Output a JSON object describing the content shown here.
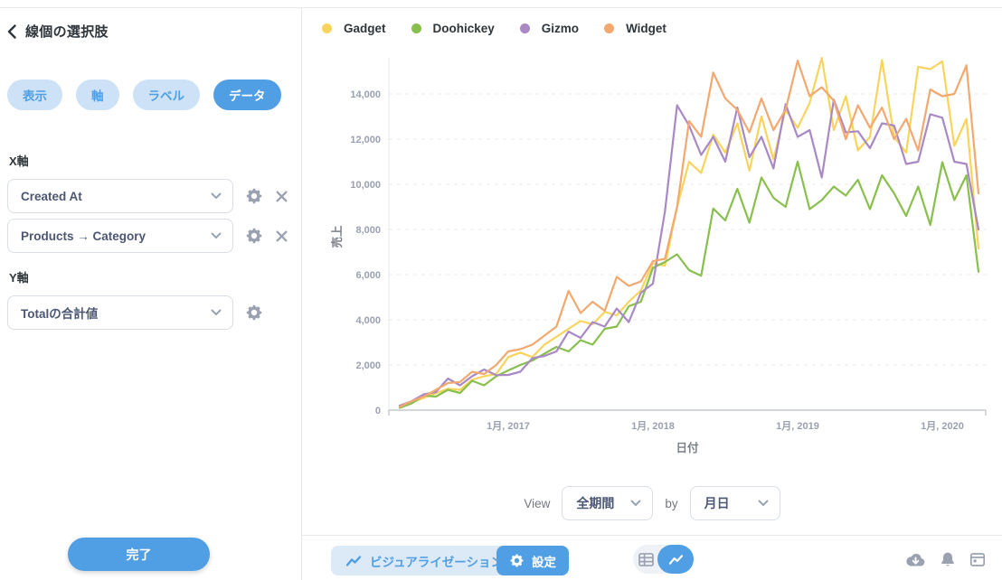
{
  "sidebar": {
    "title": "線個の選択肢",
    "tabs": [
      {
        "label": "表示",
        "active": false
      },
      {
        "label": "軸",
        "active": false
      },
      {
        "label": "ラベル",
        "active": false
      },
      {
        "label": "データ",
        "active": true
      }
    ],
    "x_axis_section": "X軸",
    "y_axis_section": "Y軸",
    "x_fields": [
      "Created At",
      "Products → Category"
    ],
    "y_fields": [
      "Totalの合計値"
    ],
    "done_label": "完了"
  },
  "legend": [
    {
      "label": "Gadget",
      "color": "#F9D45C"
    },
    {
      "label": "Doohickey",
      "color": "#88BF4D"
    },
    {
      "label": "Gizmo",
      "color": "#A989C5"
    },
    {
      "label": "Widget",
      "color": "#F2A86F"
    }
  ],
  "chart_data": {
    "type": "line",
    "title": "",
    "xlabel": "日付",
    "ylabel": "売上",
    "ylim": [
      0,
      15700
    ],
    "grid": "dashed-horizontal",
    "legend_position": "top",
    "y_ticks": [
      0,
      2000,
      4000,
      6000,
      8000,
      10000,
      12000,
      14000
    ],
    "x_ticks": [
      {
        "index": 9,
        "label": "1月, 2017"
      },
      {
        "index": 21,
        "label": "1月, 2018"
      },
      {
        "index": 33,
        "label": "1月, 2019"
      },
      {
        "index": 45,
        "label": "1月, 2020"
      }
    ],
    "x": [
      "2016-04",
      "2016-05",
      "2016-06",
      "2016-07",
      "2016-08",
      "2016-09",
      "2016-10",
      "2016-11",
      "2016-12",
      "2017-01",
      "2017-02",
      "2017-03",
      "2017-04",
      "2017-05",
      "2017-06",
      "2017-07",
      "2017-08",
      "2017-09",
      "2017-10",
      "2017-11",
      "2017-12",
      "2018-01",
      "2018-02",
      "2018-03",
      "2018-04",
      "2018-05",
      "2018-06",
      "2018-07",
      "2018-08",
      "2018-09",
      "2018-10",
      "2018-11",
      "2018-12",
      "2019-01",
      "2019-02",
      "2019-03",
      "2019-04",
      "2019-05",
      "2019-06",
      "2019-07",
      "2019-08",
      "2019-09",
      "2019-10",
      "2019-11",
      "2019-12",
      "2020-01",
      "2020-02",
      "2020-03",
      "2020-04"
    ],
    "series": [
      {
        "name": "Gadget",
        "color": "#F9D45C",
        "values": [
          150,
          350,
          550,
          750,
          950,
          900,
          1350,
          1500,
          1600,
          2350,
          2550,
          2350,
          2900,
          3250,
          3600,
          3950,
          3800,
          4350,
          4200,
          4800,
          5300,
          6500,
          6400,
          9000,
          11000,
          10500,
          12200,
          11400,
          12700,
          10600,
          13000,
          11100,
          13300,
          12500,
          13600,
          15600,
          12400,
          13900,
          11500,
          12100,
          15500,
          12100,
          11400,
          15200,
          15100,
          15450,
          11700,
          12900,
          7150
        ]
      },
      {
        "name": "Doohickey",
        "color": "#88BF4D",
        "values": [
          100,
          300,
          650,
          600,
          900,
          760,
          1300,
          1100,
          1500,
          1760,
          2000,
          2200,
          2500,
          2800,
          2600,
          3100,
          2900,
          3600,
          3700,
          4600,
          4800,
          6300,
          6560,
          6900,
          6200,
          5950,
          8930,
          8400,
          9800,
          8300,
          10300,
          9400,
          9000,
          11000,
          8900,
          9300,
          9900,
          9500,
          10200,
          8900,
          10400,
          9600,
          8600,
          9900,
          8200,
          10980,
          9300,
          10400,
          6130
        ]
      },
      {
        "name": "Gizmo",
        "color": "#A989C5",
        "values": [
          200,
          400,
          700,
          800,
          1400,
          1100,
          1500,
          1800,
          1550,
          1560,
          1700,
          2300,
          2400,
          2600,
          3480,
          3200,
          3900,
          3700,
          4500,
          3900,
          5200,
          5600,
          8800,
          13500,
          12600,
          11300,
          12100,
          11000,
          13400,
          11200,
          12100,
          10700,
          13550,
          12100,
          12400,
          10300,
          13750,
          12300,
          12350,
          11600,
          12700,
          12600,
          10900,
          11000,
          13100,
          12950,
          11000,
          10900,
          8000
        ]
      },
      {
        "name": "Widget",
        "color": "#F2A86F",
        "values": [
          150,
          400,
          600,
          900,
          1200,
          1250,
          1700,
          1600,
          2000,
          2600,
          2700,
          2900,
          3300,
          3700,
          5280,
          4300,
          4800,
          4400,
          5900,
          5500,
          5700,
          6600,
          6700,
          9000,
          12800,
          12100,
          14950,
          13800,
          13300,
          12300,
          13800,
          12400,
          13300,
          15470,
          13900,
          14300,
          13700,
          12000,
          13500,
          12500,
          13400,
          12000,
          12900,
          11500,
          14200,
          13900,
          14000,
          15270,
          9600
        ]
      }
    ]
  },
  "footer": {
    "view_label": "View",
    "view_value": "全期間",
    "by_label": "by",
    "by_value": "月日"
  },
  "bottom_bar": {
    "visualization_label": "ビジュアライゼーション",
    "settings_label": "設定"
  },
  "colors": {
    "accent_blue": "#509EE3",
    "tab_inactive_bg": "#CDE2F7",
    "text_dark": "#2E353B",
    "field_text": "#4C5773",
    "muted_icon": "#9AA2B1",
    "tick_text": "#9AA0AF",
    "border": "#D9DEE4",
    "gridline": "#E9E9E9"
  }
}
